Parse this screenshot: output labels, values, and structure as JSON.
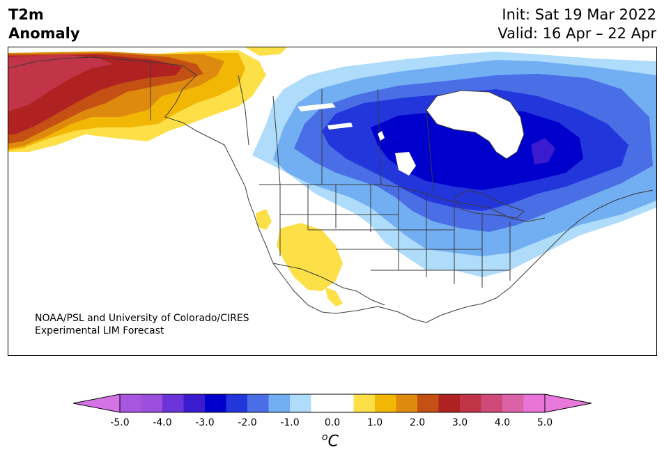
{
  "title": {
    "left_line1": "T2m",
    "left_line2": "Anomaly",
    "right_line1": "Init: Sat 19 Mar 2022",
    "right_line2": "Valid: 16 Apr – 22 Apr"
  },
  "credit": {
    "line1": "NOAA/PSL and University of Colorado/CIRES",
    "line2": "Experimental LIM Forecast"
  },
  "colorbar": {
    "unit_sup": "o",
    "unit_main": "C",
    "ticks": [
      "-5.0",
      "-4.0",
      "-3.0",
      "-2.0",
      "-1.0",
      "0.0",
      "1.0",
      "2.0",
      "3.0",
      "4.0",
      "5.0"
    ],
    "bins": [
      {
        "range": "-5.0 to -4.5",
        "color": "#a855e0"
      },
      {
        "range": "-4.5 to -4.0",
        "color": "#9b4fdc"
      },
      {
        "range": "-4.0 to -3.5",
        "color": "#6a34d8"
      },
      {
        "range": "-3.5 to -3.0",
        "color": "#3a1bd0"
      },
      {
        "range": "-3.0 to -2.5",
        "color": "#0000cc"
      },
      {
        "range": "-2.5 to -2.0",
        "color": "#2236dc"
      },
      {
        "range": "-2.0 to -1.5",
        "color": "#4a6ee6"
      },
      {
        "range": "-1.5 to -1.0",
        "color": "#72aef2"
      },
      {
        "range": "-1.0 to -0.5",
        "color": "#aedcfa"
      },
      {
        "range": "-0.5 to 0.0",
        "color": "#ffffff"
      },
      {
        "range": "0.0 to 0.5",
        "color": "#ffffff"
      },
      {
        "range": "0.5 to 1.0",
        "color": "#fde047"
      },
      {
        "range": "1.0 to 1.5",
        "color": "#f2b705"
      },
      {
        "range": "1.5 to 2.0",
        "color": "#de8a0e"
      },
      {
        "range": "2.0 to 2.5",
        "color": "#c45014"
      },
      {
        "range": "2.5 to 3.0",
        "color": "#b02222"
      },
      {
        "range": "3.0 to 3.5",
        "color": "#c23448"
      },
      {
        "range": "3.5 to 4.0",
        "color": "#cf4a78"
      },
      {
        "range": "4.0 to 4.5",
        "color": "#dc62a8"
      },
      {
        "range": "4.5 to 5.0",
        "color": "#e874d8"
      }
    ],
    "extend_low_color": "#d472e6",
    "extend_high_color": "#e878dc"
  },
  "map_colors": {
    "land_border": "#3a3a3a",
    "warm_1": "#fde047",
    "warm_2": "#f2b705",
    "warm_3": "#de8a0e",
    "warm_4": "#c45014",
    "warm_5": "#b02222",
    "warm_6": "#c23448",
    "cold_1": "#aedcfa",
    "cold_2": "#72aef2",
    "cold_3": "#4a6ee6",
    "cold_4": "#2236dc",
    "cold_5": "#0000cc",
    "cold_6": "#3a1bd0"
  }
}
